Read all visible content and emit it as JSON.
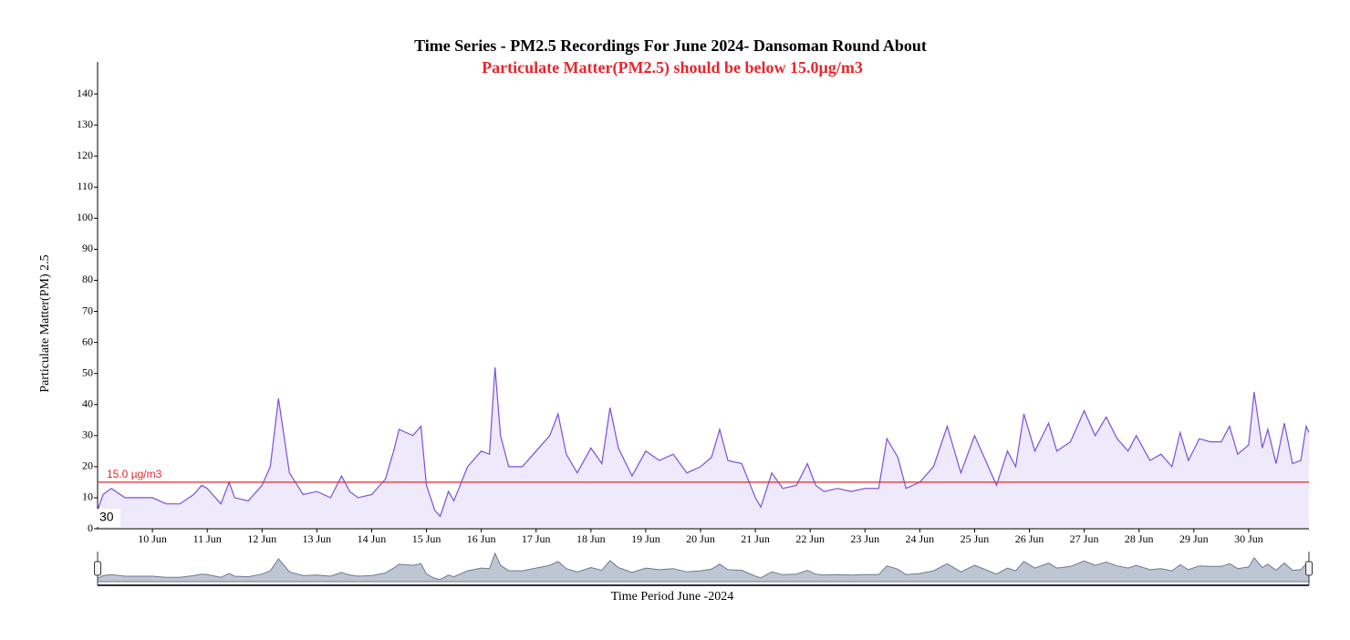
{
  "chart_data": {
    "type": "area",
    "title": "Time Series - PM2.5 Recordings For June 2024- Dansoman Round About",
    "subtitle": "Particulate Matter(PM2.5) should be below 15.0µg/m3",
    "y_label": "Particulate Matter(PM) 2.5",
    "x_label": "Time Period June -2024",
    "cursor_label": "30",
    "threshold": {
      "value": 15.0,
      "label": "15.0 µg/m3",
      "color": "#e8262b"
    },
    "series": [
      {
        "name": "PM2.5",
        "color": "#7b4fe0",
        "fill": "#efe9fc",
        "x": [
          9.0,
          9.1,
          9.25,
          9.5,
          9.75,
          10.0,
          10.25,
          10.5,
          10.75,
          10.9,
          11.0,
          11.25,
          11.4,
          11.5,
          11.75,
          12.0,
          12.15,
          12.3,
          12.4,
          12.5,
          12.75,
          13.0,
          13.25,
          13.45,
          13.6,
          13.75,
          14.0,
          14.25,
          14.4,
          14.5,
          14.75,
          14.9,
          15.0,
          15.15,
          15.25,
          15.4,
          15.5,
          15.75,
          16.0,
          16.15,
          16.25,
          16.35,
          16.5,
          16.75,
          17.0,
          17.25,
          17.4,
          17.55,
          17.75,
          18.0,
          18.2,
          18.35,
          18.5,
          18.75,
          19.0,
          19.25,
          19.5,
          19.75,
          20.0,
          20.2,
          20.35,
          20.5,
          20.75,
          21.0,
          21.1,
          21.3,
          21.5,
          21.75,
          21.95,
          22.1,
          22.25,
          22.5,
          22.75,
          23.0,
          23.25,
          23.4,
          23.6,
          23.75,
          24.0,
          24.25,
          24.5,
          24.75,
          25.0,
          25.2,
          25.4,
          25.6,
          25.75,
          25.9,
          26.1,
          26.35,
          26.5,
          26.75,
          27.0,
          27.2,
          27.4,
          27.6,
          27.8,
          27.95,
          28.2,
          28.4,
          28.6,
          28.75,
          28.9,
          29.1,
          29.3,
          29.5,
          29.65,
          29.8,
          30.0,
          30.1,
          30.25,
          30.35,
          30.5,
          30.65,
          30.8,
          30.95,
          31.05,
          31.1
        ],
        "values": [
          6,
          11,
          13,
          10,
          10,
          10,
          8,
          8,
          11,
          14,
          13,
          8,
          15,
          10,
          9,
          14,
          20,
          42,
          30,
          18,
          11,
          12,
          10,
          17,
          12,
          10,
          11,
          16,
          25,
          32,
          30,
          33,
          14,
          6,
          4,
          12,
          9,
          20,
          25,
          24,
          52,
          30,
          20,
          20,
          25,
          30,
          37,
          24,
          18,
          26,
          21,
          39,
          26,
          17,
          25,
          22,
          24,
          18,
          20,
          23,
          32,
          22,
          21,
          10,
          7,
          18,
          13,
          14,
          21,
          14,
          12,
          13,
          12,
          13,
          13,
          29,
          23,
          13,
          15,
          20,
          33,
          18,
          30,
          22,
          14,
          25,
          20,
          37,
          25,
          34,
          25,
          28,
          38,
          30,
          36,
          29,
          25,
          30,
          22,
          24,
          20,
          31,
          22,
          29,
          28,
          28,
          33,
          24,
          27,
          44,
          26,
          32,
          21,
          34,
          21,
          22,
          33,
          31
        ]
      }
    ],
    "xlim": [
      9.0,
      31.1
    ],
    "xticks": [
      {
        "value": 10,
        "label": "10 Jun"
      },
      {
        "value": 11,
        "label": "11 Jun"
      },
      {
        "value": 12,
        "label": "12 Jun"
      },
      {
        "value": 13,
        "label": "13 Jun"
      },
      {
        "value": 14,
        "label": "14 Jun"
      },
      {
        "value": 15,
        "label": "15 Jun"
      },
      {
        "value": 16,
        "label": "16 Jun"
      },
      {
        "value": 17,
        "label": "17 Jun"
      },
      {
        "value": 18,
        "label": "18 Jun"
      },
      {
        "value": 19,
        "label": "19 Jun"
      },
      {
        "value": 20,
        "label": "20 Jun"
      },
      {
        "value": 21,
        "label": "21 Jun"
      },
      {
        "value": 22,
        "label": "22 Jun"
      },
      {
        "value": 23,
        "label": "23 Jun"
      },
      {
        "value": 24,
        "label": "24 Jun"
      },
      {
        "value": 25,
        "label": "25 Jun"
      },
      {
        "value": 26,
        "label": "26 Jun"
      },
      {
        "value": 27,
        "label": "27 Jun"
      },
      {
        "value": 28,
        "label": "28 Jun"
      },
      {
        "value": 29,
        "label": "29 Jun"
      },
      {
        "value": 30,
        "label": "30 Jun"
      }
    ],
    "ylim": [
      0,
      150
    ],
    "yticks": [
      0,
      10,
      20,
      30,
      40,
      50,
      60,
      70,
      80,
      90,
      100,
      110,
      120,
      130,
      140
    ],
    "grid": false
  }
}
